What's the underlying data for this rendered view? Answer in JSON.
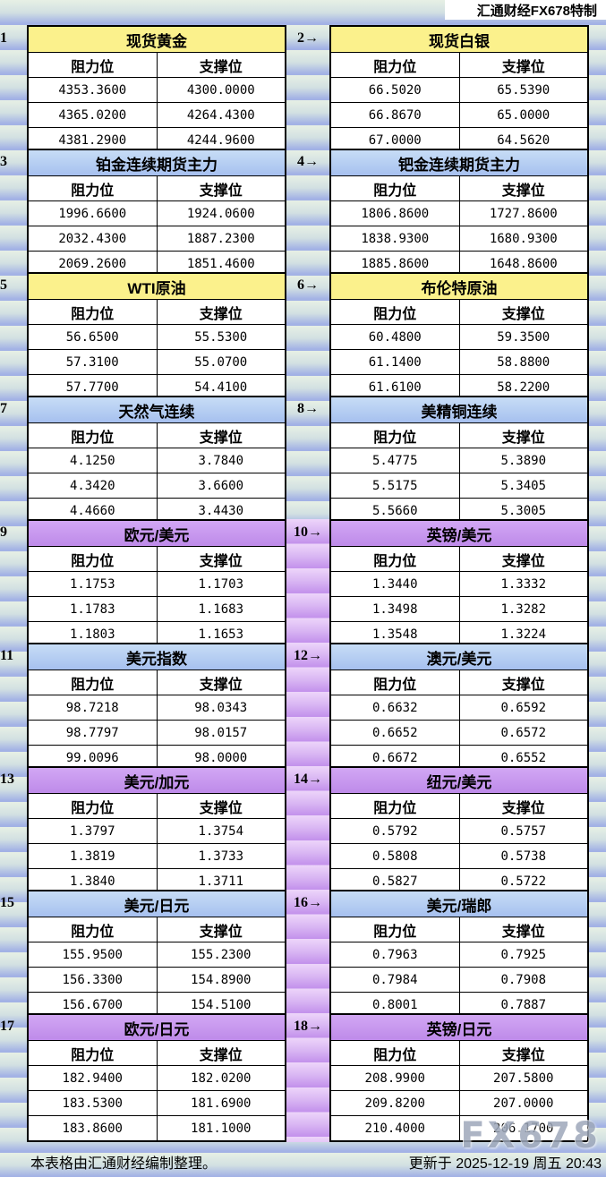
{
  "header": {
    "brand": "汇通财经FX678特制"
  },
  "labels": {
    "resistance": "阻力位",
    "support": "支撑位",
    "arrow": "→"
  },
  "panels": [
    {
      "num": "1",
      "title": "现货黄金",
      "theme": "yellow",
      "rows": [
        [
          "4353.3600",
          "4300.0000"
        ],
        [
          "4365.0200",
          "4264.4300"
        ],
        [
          "4381.2900",
          "4244.9600"
        ]
      ]
    },
    {
      "num": "2",
      "title": "现货白银",
      "theme": "yellow",
      "rows": [
        [
          "66.5020",
          "65.5390"
        ],
        [
          "66.8670",
          "65.0000"
        ],
        [
          "67.0000",
          "64.5620"
        ]
      ]
    },
    {
      "num": "3",
      "title": "铂金连续期货主力",
      "theme": "blue",
      "rows": [
        [
          "1996.6600",
          "1924.0600"
        ],
        [
          "2032.4300",
          "1887.2300"
        ],
        [
          "2069.2600",
          "1851.4600"
        ]
      ]
    },
    {
      "num": "4",
      "title": "钯金连续期货主力",
      "theme": "blue",
      "rows": [
        [
          "1806.8600",
          "1727.8600"
        ],
        [
          "1838.9300",
          "1680.9300"
        ],
        [
          "1885.8600",
          "1648.8600"
        ]
      ]
    },
    {
      "num": "5",
      "title": "WTI原油",
      "theme": "yellow",
      "rows": [
        [
          "56.6500",
          "55.5300"
        ],
        [
          "57.3100",
          "55.0700"
        ],
        [
          "57.7700",
          "54.4100"
        ]
      ]
    },
    {
      "num": "6",
      "title": "布伦特原油",
      "theme": "yellow",
      "rows": [
        [
          "60.4800",
          "59.3500"
        ],
        [
          "61.1400",
          "58.8800"
        ],
        [
          "61.6100",
          "58.2200"
        ]
      ]
    },
    {
      "num": "7",
      "title": "天然气连续",
      "theme": "blue",
      "rows": [
        [
          "4.1250",
          "3.7840"
        ],
        [
          "4.3420",
          "3.6600"
        ],
        [
          "4.4660",
          "3.4430"
        ]
      ]
    },
    {
      "num": "8",
      "title": "美精铜连续",
      "theme": "blue",
      "rows": [
        [
          "5.4775",
          "5.3890"
        ],
        [
          "5.5175",
          "5.3405"
        ],
        [
          "5.5660",
          "5.3005"
        ]
      ]
    },
    {
      "num": "9",
      "title": "欧元/美元",
      "theme": "purple",
      "rows": [
        [
          "1.1753",
          "1.1703"
        ],
        [
          "1.1783",
          "1.1683"
        ],
        [
          "1.1803",
          "1.1653"
        ]
      ]
    },
    {
      "num": "10",
      "title": "英镑/美元",
      "theme": "purple",
      "rows": [
        [
          "1.3440",
          "1.3332"
        ],
        [
          "1.3498",
          "1.3282"
        ],
        [
          "1.3548",
          "1.3224"
        ]
      ]
    },
    {
      "num": "11",
      "title": "美元指数",
      "theme": "blue",
      "rows": [
        [
          "98.7218",
          "98.0343"
        ],
        [
          "98.7797",
          "98.0157"
        ],
        [
          "99.0096",
          "98.0000"
        ]
      ]
    },
    {
      "num": "12",
      "title": "澳元/美元",
      "theme": "blue",
      "rows": [
        [
          "0.6632",
          "0.6592"
        ],
        [
          "0.6652",
          "0.6572"
        ],
        [
          "0.6672",
          "0.6552"
        ]
      ]
    },
    {
      "num": "13",
      "title": "美元/加元",
      "theme": "purple",
      "rows": [
        [
          "1.3797",
          "1.3754"
        ],
        [
          "1.3819",
          "1.3733"
        ],
        [
          "1.3840",
          "1.3711"
        ]
      ]
    },
    {
      "num": "14",
      "title": "纽元/美元",
      "theme": "purple",
      "rows": [
        [
          "0.5792",
          "0.5757"
        ],
        [
          "0.5808",
          "0.5738"
        ],
        [
          "0.5827",
          "0.5722"
        ]
      ]
    },
    {
      "num": "15",
      "title": "美元/日元",
      "theme": "blue",
      "rows": [
        [
          "155.9500",
          "155.2300"
        ],
        [
          "156.3300",
          "154.8900"
        ],
        [
          "156.6700",
          "154.5100"
        ]
      ]
    },
    {
      "num": "16",
      "title": "美元/瑞郎",
      "theme": "blue",
      "rows": [
        [
          "0.7963",
          "0.7925"
        ],
        [
          "0.7984",
          "0.7908"
        ],
        [
          "0.8001",
          "0.7887"
        ]
      ]
    },
    {
      "num": "17",
      "title": "欧元/日元",
      "theme": "purple",
      "rows": [
        [
          "182.9400",
          "182.0200"
        ],
        [
          "183.5300",
          "181.6900"
        ],
        [
          "183.8600",
          "181.1000"
        ]
      ]
    },
    {
      "num": "18",
      "title": "英镑/日元",
      "theme": "purple",
      "rows": [
        [
          "208.9900",
          "207.5800"
        ],
        [
          "209.8200",
          "207.0000"
        ],
        [
          "210.4000",
          "206.1700"
        ]
      ]
    }
  ],
  "footer": {
    "note": "本表格由汇通财经编制整理。",
    "updated": "更新于 2025-12-19 周五 20:43",
    "watermark": "FX678"
  },
  "colors": {
    "title_yellow": "#FBF18C",
    "title_blue_top": "#C7DDF6",
    "title_blue_bottom": "#A6C0EF",
    "title_purple_top": "#D2A7F4",
    "title_purple_bottom": "#BE8BE9",
    "strip_purple_light": "#EDD5FA",
    "strip_purple_dark": "#C493EC",
    "stripe_light": "#E7F0E5",
    "stripe_blue": "#A3B2E5",
    "border": "#000000",
    "cell_bg": "#FFFFFF",
    "watermark": "#9EA8BA"
  }
}
